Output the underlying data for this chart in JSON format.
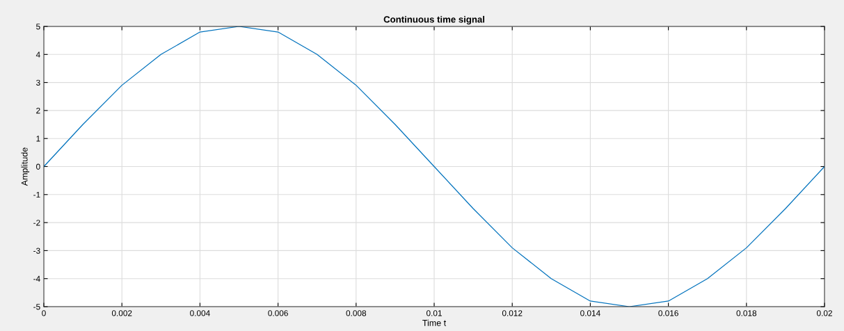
{
  "chart_data": {
    "type": "line",
    "title": "Continuous time signal",
    "xlabel": "Time t",
    "ylabel": "Amplitude",
    "x": [
      0,
      0.001,
      0.002,
      0.003,
      0.004,
      0.005,
      0.006,
      0.007,
      0.008,
      0.009,
      0.01,
      0.011,
      0.012,
      0.013,
      0.014,
      0.015,
      0.016,
      0.017,
      0.018,
      0.019,
      0.02
    ],
    "series": [
      {
        "color": "#0072bd",
        "values": [
          0,
          1.5,
          2.9,
          4.0,
          4.8,
          5,
          4.8,
          4.0,
          2.9,
          1.5,
          0,
          -1.5,
          -2.9,
          -4.0,
          -4.8,
          -5,
          -4.8,
          -4.0,
          -2.9,
          -1.5,
          0
        ]
      }
    ],
    "xlim": [
      0,
      0.02
    ],
    "xticks": [
      0,
      0.002,
      0.004,
      0.006,
      0.008,
      0.01,
      0.012,
      0.014,
      0.016,
      0.018,
      0.02
    ],
    "ylim": [
      -5,
      5
    ],
    "yticks": [
      -5,
      -4,
      -3,
      -2,
      -1,
      0,
      1,
      2,
      3,
      4,
      5
    ],
    "grid": true,
    "marker": "none",
    "line_style": "solid"
  }
}
